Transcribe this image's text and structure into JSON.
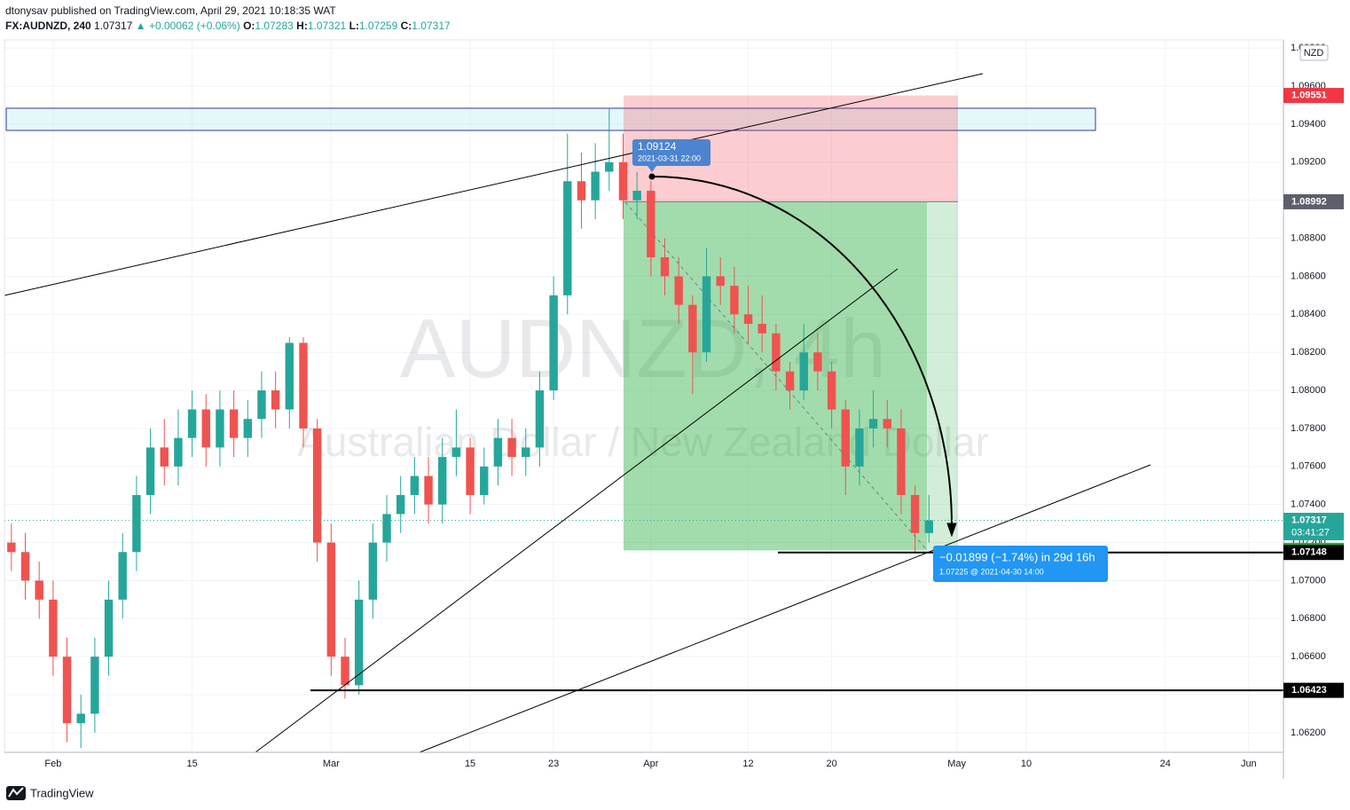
{
  "header": {
    "publisher": "dtonysav published on TradingView.com, April 29, 2021 10:18:35 WAT",
    "symbol": "FX:AUDNZD, 240",
    "last": "1.07317",
    "change": "▲ +0.00062 (+0.06%)",
    "ohlc": [
      {
        "label": "O:",
        "value": "1.07283"
      },
      {
        "label": "H:",
        "value": "1.07321"
      },
      {
        "label": "L:",
        "value": "1.07259"
      },
      {
        "label": "C:",
        "value": "1.07317"
      }
    ]
  },
  "footer": {
    "brand": "TradingView"
  },
  "chart_data": {
    "type": "candlestick",
    "watermark": "AUDNZD, 4h",
    "watermark_subtitle": "Australian Dollar / New Zealand Dollar",
    "currency": "NZD",
    "x": [
      "2021-01-27",
      "2021-01-28",
      "2021-01-29",
      "2021-02-01",
      "2021-02-02",
      "2021-02-03",
      "2021-02-04",
      "2021-02-05",
      "2021-02-08",
      "2021-02-09",
      "2021-02-10",
      "2021-02-11",
      "2021-02-12",
      "2021-02-15",
      "2021-02-16",
      "2021-02-17",
      "2021-02-18",
      "2021-02-19",
      "2021-02-22",
      "2021-02-23",
      "2021-02-24",
      "2021-02-25",
      "2021-02-26",
      "2021-03-01",
      "2021-03-02",
      "2021-03-03",
      "2021-03-04",
      "2021-03-05",
      "2021-03-08",
      "2021-03-09",
      "2021-03-10",
      "2021-03-11",
      "2021-03-12",
      "2021-03-15",
      "2021-03-16",
      "2021-03-17",
      "2021-03-18",
      "2021-03-19",
      "2021-03-22",
      "2021-03-23",
      "2021-03-24",
      "2021-03-25",
      "2021-03-26",
      "2021-03-29",
      "2021-03-30",
      "2021-03-31",
      "2021-04-01",
      "2021-04-02",
      "2021-04-05",
      "2021-04-06",
      "2021-04-07",
      "2021-04-08",
      "2021-04-09",
      "2021-04-12",
      "2021-04-13",
      "2021-04-14",
      "2021-04-15",
      "2021-04-16",
      "2021-04-19",
      "2021-04-20",
      "2021-04-21",
      "2021-04-22",
      "2021-04-23",
      "2021-04-26",
      "2021-04-27",
      "2021-04-28",
      "2021-04-29"
    ],
    "open": [
      1.072,
      1.0715,
      1.07,
      1.069,
      1.066,
      1.0625,
      1.063,
      1.066,
      1.069,
      1.0715,
      1.0745,
      1.077,
      1.076,
      1.0775,
      1.079,
      1.077,
      1.079,
      1.0775,
      1.0785,
      1.08,
      1.079,
      1.0825,
      1.078,
      1.072,
      1.066,
      1.0645,
      1.069,
      1.072,
      1.0735,
      1.0745,
      1.0755,
      1.074,
      1.0765,
      1.077,
      1.0745,
      1.076,
      1.0775,
      1.0765,
      1.077,
      1.08,
      1.085,
      1.091,
      1.09,
      1.0915,
      1.092,
      1.09,
      1.0905,
      1.087,
      1.086,
      1.0845,
      1.082,
      1.086,
      1.0855,
      1.084,
      1.0835,
      1.083,
      1.081,
      1.08,
      1.082,
      1.081,
      1.079,
      1.076,
      1.078,
      1.0785,
      1.078,
      1.0745,
      1.0725
    ],
    "high": [
      1.073,
      1.0725,
      1.071,
      1.07,
      1.067,
      1.064,
      1.067,
      1.07,
      1.0725,
      1.0755,
      1.078,
      1.0785,
      1.079,
      1.08,
      1.0798,
      1.08,
      1.08,
      1.0795,
      1.081,
      1.081,
      1.0828,
      1.0828,
      1.0785,
      1.073,
      1.067,
      1.07,
      1.073,
      1.0745,
      1.0755,
      1.0765,
      1.0765,
      1.0775,
      1.079,
      1.0775,
      1.077,
      1.0785,
      1.0785,
      1.078,
      1.081,
      1.086,
      1.0935,
      1.0925,
      1.093,
      1.0948,
      1.0935,
      1.0915,
      1.091,
      1.088,
      1.087,
      1.085,
      1.0875,
      1.087,
      1.0865,
      1.0855,
      1.085,
      1.0835,
      1.0815,
      1.0835,
      1.083,
      1.0815,
      1.0795,
      1.079,
      1.08,
      1.0795,
      1.079,
      1.075,
      1.0745
    ],
    "low": [
      1.0705,
      1.069,
      1.068,
      1.065,
      1.0615,
      1.0612,
      1.062,
      1.065,
      1.068,
      1.0705,
      1.0735,
      1.075,
      1.075,
      1.0765,
      1.076,
      1.076,
      1.0765,
      1.0765,
      1.0775,
      1.078,
      1.078,
      1.077,
      1.071,
      1.065,
      1.0638,
      1.064,
      1.068,
      1.071,
      1.0725,
      1.0735,
      1.073,
      1.073,
      1.0755,
      1.0735,
      1.074,
      1.075,
      1.0755,
      1.0755,
      1.076,
      1.0795,
      1.084,
      1.0885,
      1.089,
      1.0905,
      1.089,
      1.089,
      1.086,
      1.085,
      1.0835,
      1.0798,
      1.0815,
      1.0845,
      1.083,
      1.0825,
      1.082,
      1.08,
      1.079,
      1.0795,
      1.08,
      1.078,
      1.0745,
      1.075,
      1.077,
      1.077,
      1.0735,
      1.0715,
      1.072
    ],
    "close": [
      1.0715,
      1.07,
      1.069,
      1.066,
      1.0625,
      1.063,
      1.066,
      1.069,
      1.0715,
      1.0745,
      1.077,
      1.076,
      1.0775,
      1.079,
      1.077,
      1.079,
      1.0775,
      1.0785,
      1.08,
      1.079,
      1.0825,
      1.078,
      1.072,
      1.066,
      1.0645,
      1.069,
      1.072,
      1.0735,
      1.0745,
      1.0755,
      1.074,
      1.0765,
      1.077,
      1.0745,
      1.076,
      1.0775,
      1.0765,
      1.077,
      1.08,
      1.085,
      1.091,
      1.09,
      1.0915,
      1.092,
      1.09,
      1.0905,
      1.087,
      1.086,
      1.0845,
      1.082,
      1.086,
      1.0855,
      1.084,
      1.0835,
      1.083,
      1.081,
      1.08,
      1.082,
      1.081,
      1.079,
      1.076,
      1.078,
      1.0785,
      1.078,
      1.0745,
      1.0725,
      1.07317
    ],
    "xlim": [
      "2021-01-27",
      "2021-06-03"
    ],
    "xticks": [
      {
        "value": "2021-02-01",
        "label": "Feb"
      },
      {
        "value": "2021-02-15",
        "label": "15"
      },
      {
        "value": "2021-03-01",
        "label": "Mar"
      },
      {
        "value": "2021-03-15",
        "label": "15"
      },
      {
        "value": "2021-03-23",
        "label": "23"
      },
      {
        "value": "2021-04-01",
        "label": "Apr"
      },
      {
        "value": "2021-04-12",
        "label": "12"
      },
      {
        "value": "2021-04-20",
        "label": "20"
      },
      {
        "value": "2021-05-03",
        "label": "May"
      },
      {
        "value": "2021-05-10",
        "label": "10"
      },
      {
        "value": "2021-05-24",
        "label": "24"
      },
      {
        "value": "2021-06-01",
        "label": "Jun"
      }
    ],
    "ylim": [
      1.06097,
      1.09843
    ],
    "yticks": [
      {
        "value": 1.062,
        "label": "1.06200"
      },
      {
        "value": 1.064,
        "label": "1.06400"
      },
      {
        "value": 1.066,
        "label": "1.06600"
      },
      {
        "value": 1.068,
        "label": "1.06800"
      },
      {
        "value": 1.07,
        "label": "1.07000"
      },
      {
        "value": 1.072,
        "label": "1.07200"
      },
      {
        "value": 1.074,
        "label": "1.07400"
      },
      {
        "value": 1.076,
        "label": "1.07600"
      },
      {
        "value": 1.078,
        "label": "1.07800"
      },
      {
        "value": 1.08,
        "label": "1.08000"
      },
      {
        "value": 1.082,
        "label": "1.08200"
      },
      {
        "value": 1.084,
        "label": "1.08400"
      },
      {
        "value": 1.086,
        "label": "1.08600"
      },
      {
        "value": 1.088,
        "label": "1.08800"
      },
      {
        "value": 1.09,
        "label": "1.09000"
      },
      {
        "value": 1.092,
        "label": "1.09200"
      },
      {
        "value": 1.094,
        "label": "1.09400"
      },
      {
        "value": 1.096,
        "label": "1.09600"
      },
      {
        "value": 1.098,
        "label": "1.09800"
      }
    ],
    "grid": true,
    "colors": {
      "up": "#26a69a",
      "down": "#ef5350",
      "stop": "#f23645",
      "entry": "#5d606b",
      "target": "#22ab3a",
      "level": "#000000",
      "last": "#26a69a"
    },
    "position": {
      "stop": 1.09551,
      "entry": 1.08992,
      "target": 1.07159
    },
    "levels": [
      1.06423,
      1.07148
    ],
    "last_price": 1.07317,
    "countdown": "03:41:27",
    "annotations": {
      "start_price": "1.09124",
      "start_time": "2021-03-31 22:00",
      "change": "−0.01899 (−1.74%) in 29d 16h",
      "end": "1.07225 @ 2021-04-30  14:00"
    }
  }
}
